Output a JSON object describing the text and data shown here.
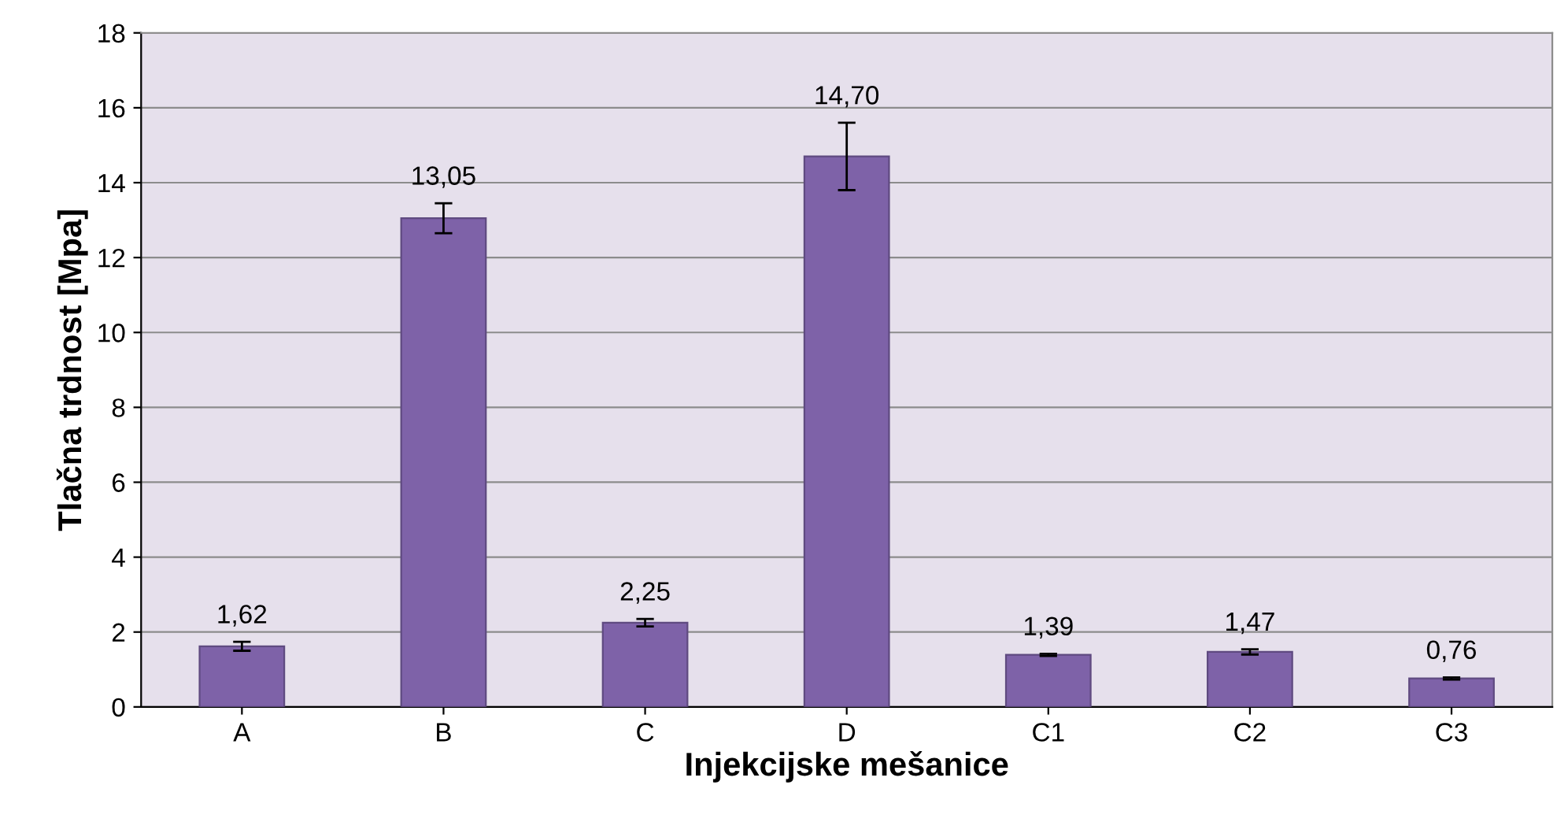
{
  "chart_data": {
    "type": "bar",
    "xlabel": "Injekcijske mešanice",
    "ylabel": "Tlačna trdnost [Mpa]",
    "categories": [
      "A",
      "B",
      "C",
      "D",
      "C1",
      "C2",
      "C3"
    ],
    "values": [
      1.62,
      13.05,
      2.25,
      14.7,
      1.39,
      1.47,
      0.76
    ],
    "value_labels": [
      "1,62",
      "13,05",
      "2,25",
      "14,70",
      "1,39",
      "1,47",
      "0,76"
    ],
    "errors": [
      0.12,
      0.4,
      0.1,
      0.9,
      0.03,
      0.07,
      0.03
    ],
    "color": "#7e62a8",
    "ylim": [
      0,
      18
    ],
    "yticks": [
      0,
      2,
      4,
      6,
      8,
      10,
      12,
      14,
      16,
      18
    ],
    "grid": "y"
  }
}
